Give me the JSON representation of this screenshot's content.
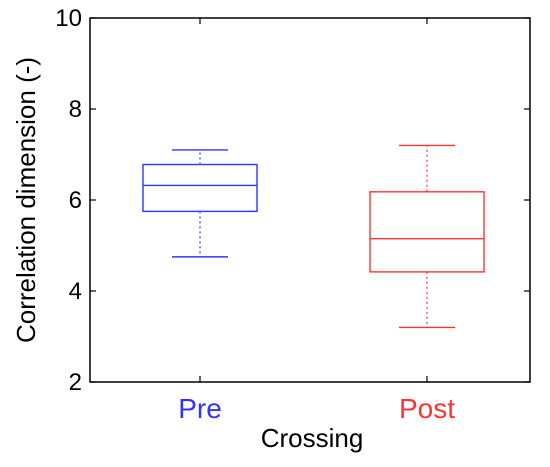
{
  "chart_data": {
    "type": "box",
    "title": "",
    "xlabel": "Crossing",
    "ylabel": "Correlation dimension (-)",
    "ylim": [
      2,
      10
    ],
    "yticks": [
      "2",
      "4",
      "6",
      "8",
      "10"
    ],
    "grid": false,
    "categories": [
      "Pre",
      "Post"
    ],
    "colors": [
      "#3333ff",
      "#ff3333"
    ],
    "boxes": [
      {
        "category": "Pre",
        "min": 4.75,
        "q1": 5.75,
        "median": 6.32,
        "q3": 6.78,
        "max": 7.1
      },
      {
        "category": "Post",
        "min": 3.2,
        "q1": 4.42,
        "median": 5.15,
        "q3": 6.18,
        "max": 7.2
      }
    ]
  }
}
